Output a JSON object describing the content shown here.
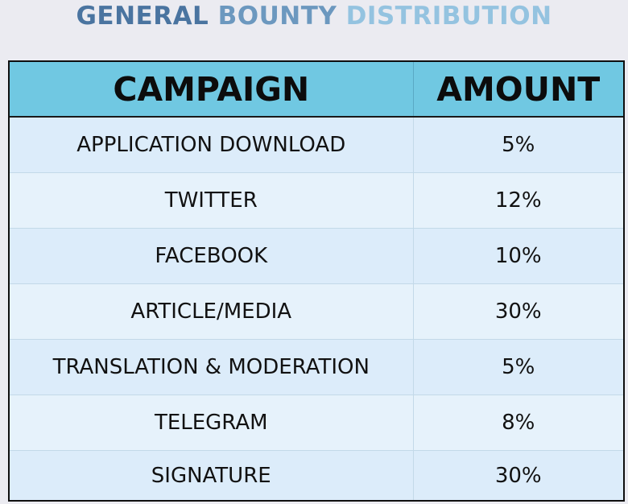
{
  "title": {
    "parts": [
      {
        "text": "GENERAL ",
        "color": "#4a74a0"
      },
      {
        "text": "BOUNTY ",
        "color": "#6c98bf"
      },
      {
        "text": "DISTRIBUTION",
        "color": "#94c3e0"
      }
    ]
  },
  "table": {
    "headers": [
      "CAMPAIGN",
      "AMOUNT"
    ],
    "rows": [
      {
        "campaign": "APPLICATION DOWNLOAD",
        "amount": "5%"
      },
      {
        "campaign": "TWITTER",
        "amount": "12%"
      },
      {
        "campaign": "FACEBOOK",
        "amount": "10%"
      },
      {
        "campaign": "ARTICLE/MEDIA",
        "amount": "30%"
      },
      {
        "campaign": "TRANSLATION & MODERATION",
        "amount": "5%"
      },
      {
        "campaign": "TELEGRAM",
        "amount": "8%"
      },
      {
        "campaign": "SIGNATURE",
        "amount": "30%"
      }
    ]
  },
  "colors": {
    "header_bg": "#70c8e2",
    "row_bg_a": "#dcecfa",
    "row_bg_b": "#e6f2fb",
    "page_bg": "#ebebf1"
  }
}
